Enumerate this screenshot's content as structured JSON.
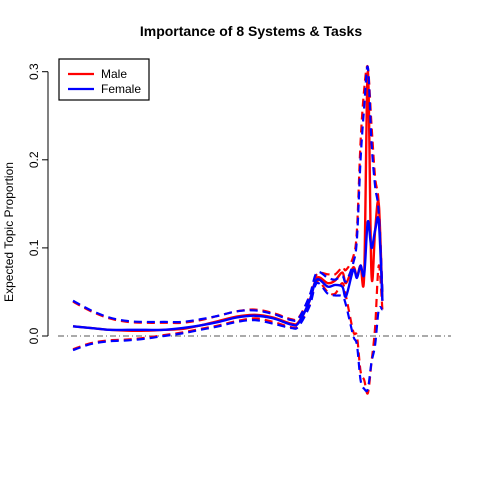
{
  "chart_data": {
    "type": "line",
    "title": "Importance of 8 Systems & Tasks",
    "xlabel": "",
    "ylabel": "Expected Topic Proportion",
    "x_domain": [
      0,
      100
    ],
    "ylim": [
      -0.07,
      0.31
    ],
    "y_ticks": [
      0.0,
      0.1,
      0.2,
      0.3
    ],
    "y_tick_labels": [
      "0.0",
      "0.1",
      "0.2",
      "0.3"
    ],
    "x_axis_shown": false,
    "grid": false,
    "reference_line": {
      "y": 0,
      "style": "dash-dot",
      "color": "#555555"
    },
    "legend": {
      "placement": "top-left",
      "entries": [
        {
          "label": "Male",
          "color": "#ff0000"
        },
        {
          "label": "Female",
          "color": "#0000ff"
        }
      ]
    },
    "series": [
      {
        "name": "Male",
        "color": "#ff0000",
        "x": [
          0,
          5,
          10,
          15,
          20,
          25,
          30,
          35,
          40,
          45,
          50,
          55,
          60,
          62,
          65,
          67,
          70,
          72,
          74,
          75,
          77,
          78,
          79,
          80,
          81,
          82,
          83,
          84,
          85
        ],
        "estimate": [
          0.011,
          0.009,
          0.007,
          0.006,
          0.006,
          0.007,
          0.008,
          0.012,
          0.017,
          0.022,
          0.024,
          0.021,
          0.014,
          0.016,
          0.04,
          0.066,
          0.06,
          0.063,
          0.072,
          0.06,
          0.078,
          0.068,
          0.08,
          0.07,
          0.3,
          0.07,
          0.12,
          0.15,
          0.04
        ],
        "lower": [
          -0.015,
          -0.008,
          -0.005,
          -0.004,
          -0.002,
          0.001,
          0.004,
          0.008,
          0.012,
          0.017,
          0.02,
          0.016,
          0.01,
          0.012,
          0.035,
          0.062,
          0.05,
          0.048,
          0.06,
          0.045,
          0.005,
          0.0,
          -0.04,
          -0.05,
          -0.065,
          -0.03,
          0.01,
          0.08,
          0.03
        ],
        "upper": [
          0.039,
          0.028,
          0.02,
          0.016,
          0.015,
          0.015,
          0.015,
          0.018,
          0.023,
          0.028,
          0.03,
          0.026,
          0.019,
          0.021,
          0.045,
          0.07,
          0.07,
          0.07,
          0.078,
          0.075,
          0.09,
          0.12,
          0.22,
          0.28,
          0.305,
          0.24,
          0.18,
          0.15,
          0.05
        ]
      },
      {
        "name": "Female",
        "color": "#0000ff",
        "x": [
          0,
          5,
          10,
          15,
          20,
          25,
          30,
          35,
          40,
          45,
          50,
          55,
          60,
          62,
          65,
          67,
          70,
          72,
          74,
          75,
          77,
          78,
          79,
          80,
          81,
          82,
          83,
          84,
          85
        ],
        "estimate": [
          0.011,
          0.009,
          0.007,
          0.007,
          0.007,
          0.007,
          0.009,
          0.012,
          0.016,
          0.021,
          0.023,
          0.02,
          0.013,
          0.015,
          0.04,
          0.064,
          0.056,
          0.058,
          0.056,
          0.045,
          0.075,
          0.066,
          0.08,
          0.07,
          0.13,
          0.1,
          0.12,
          0.13,
          0.04
        ],
        "lower": [
          -0.016,
          -0.009,
          -0.006,
          -0.005,
          -0.003,
          0.0,
          0.003,
          0.007,
          0.011,
          0.016,
          0.018,
          0.014,
          0.009,
          0.011,
          0.034,
          0.06,
          0.048,
          0.046,
          0.045,
          0.035,
          0.0,
          -0.01,
          -0.05,
          -0.06,
          -0.06,
          -0.03,
          -0.01,
          0.03,
          0.03
        ],
        "upper": [
          0.04,
          0.029,
          0.021,
          0.017,
          0.016,
          0.016,
          0.016,
          0.019,
          0.023,
          0.028,
          0.029,
          0.025,
          0.018,
          0.02,
          0.046,
          0.072,
          0.066,
          0.064,
          0.068,
          0.062,
          0.083,
          0.11,
          0.2,
          0.26,
          0.305,
          0.22,
          0.17,
          0.14,
          0.05
        ]
      }
    ]
  }
}
